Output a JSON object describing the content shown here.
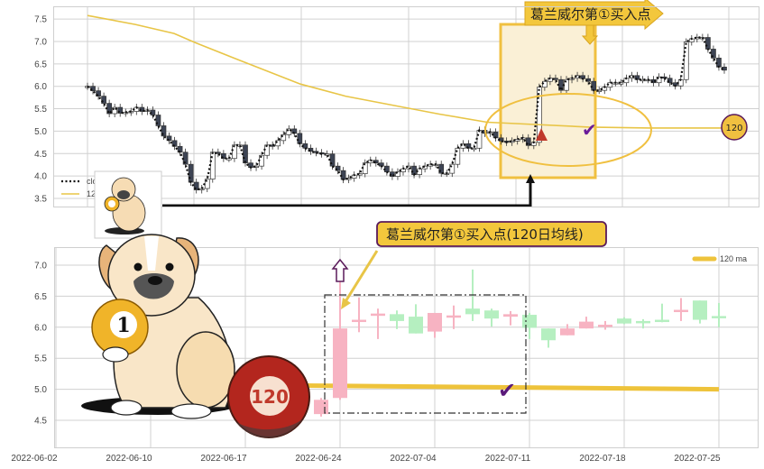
{
  "chart_data": [
    {
      "type": "candlestick",
      "panel": "top",
      "ylim": [
        3.35,
        7.75
      ],
      "yticks": [
        "3.5",
        "4.0",
        "4.5",
        "5.0",
        "5.5",
        "6.0",
        "6.5",
        "7.0",
        "7.5"
      ],
      "grid": true,
      "legend": {
        "placement": "bottom-left",
        "entries": [
          "close",
          "120 ma"
        ]
      },
      "series": [
        {
          "name": "close",
          "style": "dotted",
          "values": [
            6.0,
            5.9,
            5.78,
            5.62,
            5.39,
            5.53,
            5.4,
            5.42,
            5.44,
            5.53,
            5.44,
            5.47,
            5.36,
            5.12,
            4.89,
            4.79,
            4.66,
            4.53,
            4.26,
            3.86,
            3.69,
            3.72,
            3.93,
            4.53,
            4.5,
            4.39,
            4.39,
            4.69,
            4.69,
            4.29,
            4.19,
            4.22,
            4.46,
            4.69,
            4.67,
            4.79,
            4.92,
            5.05,
            4.95,
            4.72,
            4.62,
            4.55,
            4.52,
            4.49,
            4.49,
            4.22,
            4.12,
            3.92,
            3.95,
            4.02,
            4.05,
            4.29,
            4.35,
            4.29,
            4.22,
            4.09,
            3.99,
            4.09,
            4.16,
            4.22,
            4.03,
            4.16,
            4.22,
            4.26,
            4.26,
            4.06,
            4.06,
            4.26,
            4.62,
            4.72,
            4.62,
            4.62,
            5.02,
            4.95,
            4.98,
            4.85,
            4.78,
            4.75,
            4.78,
            4.82,
            4.85,
            4.68,
            4.75,
            5.98,
            6.11,
            6.18,
            6.15,
            5.91,
            6.15,
            6.18,
            6.24,
            6.17,
            6.11,
            5.91,
            5.91,
            5.98,
            6.08,
            6.08,
            6.08,
            6.18,
            6.24,
            6.15,
            6.15,
            6.15,
            6.08,
            6.21,
            6.18,
            6.08,
            6.01,
            6.15,
            6.99,
            7.06,
            7.09,
            7.09,
            6.83,
            6.63,
            6.43,
            6.36
          ]
        },
        {
          "name": "120 ma",
          "color": "#e8c547",
          "values": [
            7.58,
            7.38,
            7.18,
            6.97,
            6.57,
            6.05,
            5.78,
            5.6,
            5.38,
            5.2,
            5.09,
            5.07,
            5.07,
            5.07
          ]
        }
      ],
      "annotations": {
        "banner": "葛兰威尔第①买入点",
        "ma_badge": "120"
      }
    },
    {
      "type": "candlestick",
      "panel": "bottom",
      "ylim": [
        4.07,
        7.28
      ],
      "yticks": [
        "4.5",
        "5.0",
        "5.5",
        "6.0",
        "6.5",
        "7.0"
      ],
      "grid": true,
      "xticks": [
        {
          "label": "2022-06-02",
          "index": -14
        },
        {
          "label": "2022-06-10",
          "index": -9
        },
        {
          "label": "2022-06-17",
          "index": -4
        },
        {
          "label": "2022-06-24",
          "index": 1
        },
        {
          "label": "2022-07-04",
          "index": 6
        },
        {
          "label": "2022-07-11",
          "index": 11
        },
        {
          "label": "2022-07-18",
          "index": 16
        },
        {
          "label": "2022-07-25",
          "index": 21
        }
      ],
      "legend": {
        "placement": "top-right",
        "entries": [
          "120 ma"
        ]
      },
      "up_color": "#f7b3c2",
      "down_color": "#b5efc0",
      "candles": [
        {
          "o": 4.6,
          "h": 4.86,
          "l": 4.56,
          "c": 4.83
        },
        {
          "o": 4.86,
          "h": 6.76,
          "l": 4.83,
          "c": 5.98
        },
        {
          "o": 6.1,
          "h": 6.48,
          "l": 5.92,
          "c": 6.12
        },
        {
          "o": 6.2,
          "h": 6.3,
          "l": 5.81,
          "c": 6.22
        },
        {
          "o": 6.21,
          "h": 6.27,
          "l": 5.97,
          "c": 6.1
        },
        {
          "o": 6.17,
          "h": 6.37,
          "l": 5.9,
          "c": 5.9
        },
        {
          "o": 5.93,
          "h": 6.23,
          "l": 5.83,
          "c": 6.23
        },
        {
          "o": 6.17,
          "h": 6.35,
          "l": 5.97,
          "c": 6.19
        },
        {
          "o": 6.3,
          "h": 6.93,
          "l": 6.1,
          "c": 6.21
        },
        {
          "o": 6.27,
          "h": 6.3,
          "l": 6.01,
          "c": 6.14
        },
        {
          "o": 6.17,
          "h": 6.26,
          "l": 6.03,
          "c": 6.21
        },
        {
          "o": 6.2,
          "h": 6.23,
          "l": 5.81,
          "c": 5.99
        },
        {
          "o": 5.98,
          "h": 5.98,
          "l": 5.67,
          "c": 5.79
        },
        {
          "o": 5.87,
          "h": 6.05,
          "l": 5.87,
          "c": 5.98
        },
        {
          "o": 5.98,
          "h": 6.17,
          "l": 5.98,
          "c": 6.09
        },
        {
          "o": 6.02,
          "h": 6.1,
          "l": 5.96,
          "c": 6.04
        },
        {
          "o": 6.14,
          "h": 6.16,
          "l": 6.05,
          "c": 6.06
        },
        {
          "o": 6.1,
          "h": 6.13,
          "l": 5.98,
          "c": 6.08
        },
        {
          "o": 6.12,
          "h": 6.38,
          "l": 6.08,
          "c": 6.1
        },
        {
          "o": 6.26,
          "h": 6.47,
          "l": 6.1,
          "c": 6.28
        },
        {
          "o": 6.43,
          "h": 6.43,
          "l": 6.06,
          "c": 6.12
        },
        {
          "o": 6.18,
          "h": 6.39,
          "l": 6.0,
          "c": 6.17
        }
      ],
      "ma120": {
        "name": "120 ma",
        "color": "#eec33b",
        "values": [
          5.06,
          5.0
        ]
      },
      "annotations": {
        "label": "葛兰威尔第①买入点(120日均线)",
        "ball_badges": [
          "1",
          "120"
        ]
      }
    }
  ]
}
